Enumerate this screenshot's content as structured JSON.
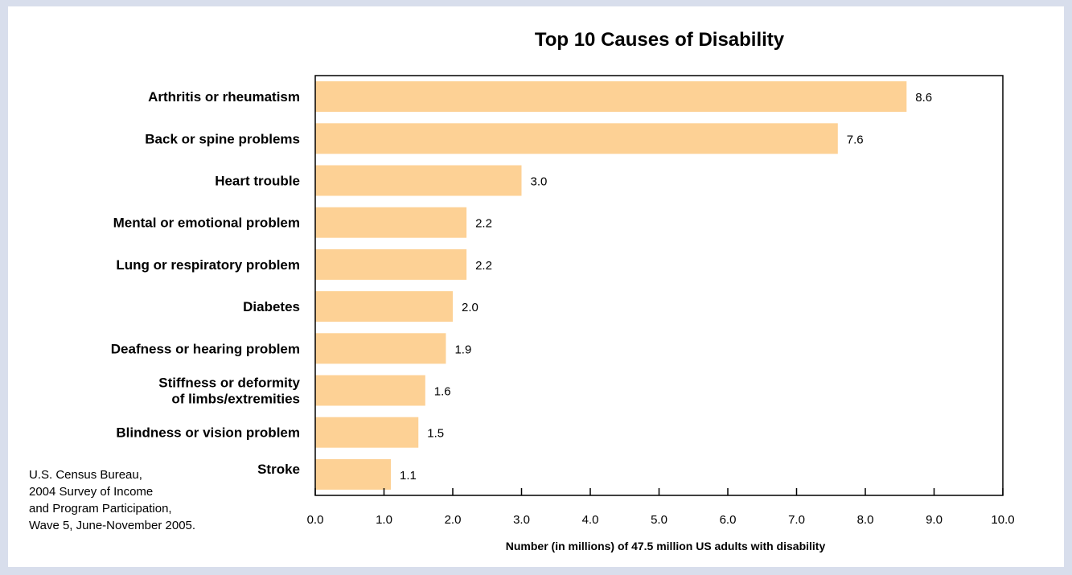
{
  "chart_data": {
    "type": "bar",
    "orientation": "horizontal",
    "title": "Top 10 Causes of Disability",
    "xlabel": "Number (in millions) of 47.5 million US adults with disability",
    "ylabel": "",
    "xlim": [
      0,
      10
    ],
    "xticks": [
      "0.0",
      "1.0",
      "2.0",
      "3.0",
      "4.0",
      "5.0",
      "6.0",
      "7.0",
      "8.0",
      "9.0",
      "10.0"
    ],
    "categories": [
      [
        "Arthritis or rheumatism"
      ],
      [
        "Back or spine problems"
      ],
      [
        "Heart trouble"
      ],
      [
        "Mental or emotional problem"
      ],
      [
        "Lung or respiratory problem"
      ],
      [
        "Diabetes"
      ],
      [
        "Deafness or hearing problem"
      ],
      [
        "Stiffness or deformity",
        "of limbs/extremities"
      ],
      [
        "Blindness or vision problem"
      ],
      [
        "Stroke"
      ]
    ],
    "values": [
      8.6,
      7.6,
      3.0,
      2.2,
      2.2,
      2.0,
      1.9,
      1.6,
      1.5,
      1.1
    ],
    "value_labels": [
      "8.6",
      "7.6",
      "3.0",
      "2.2",
      "2.2",
      "2.0",
      "1.9",
      "1.6",
      "1.5",
      "1.1"
    ],
    "bar_color": "#fdd195",
    "grid": false,
    "legend": "none"
  },
  "source": {
    "lines": [
      "U.S. Census Bureau,",
      "2004 Survey of Income",
      "and Program Participation,",
      "Wave 5, June-November 2005."
    ]
  },
  "colors": {
    "frame_background": "#d8deec",
    "panel_background": "#ffffff"
  }
}
